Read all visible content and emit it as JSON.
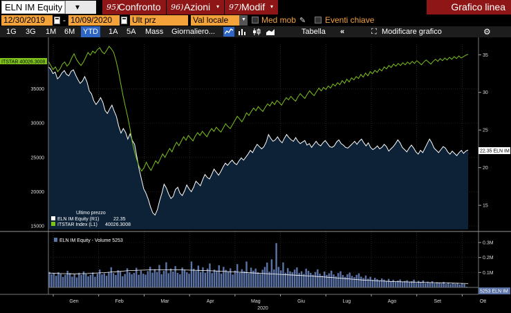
{
  "title_bar": {
    "security": "ELN IM Equity",
    "buttons": [
      {
        "num": "95)",
        "label": "Confronto"
      },
      {
        "num": "96)",
        "label": "Azioni"
      },
      {
        "num": "97)",
        "label": "Modif"
      }
    ],
    "title": "Grafico linea"
  },
  "controls": {
    "start_date": "12/30/2019",
    "dash": "-",
    "end_date": "10/09/2020",
    "field": "Ult prz",
    "currency": "Val locale",
    "moving_avg": "Med mob",
    "events": "Eventi chiave"
  },
  "toolbar": {
    "periods": [
      "1G",
      "3G",
      "1M",
      "6M",
      "YTD",
      "1A",
      "5A",
      "Mass"
    ],
    "active_period": "YTD",
    "frequency": "Giornaliero...",
    "table": "Tabella",
    "modify": "Modificare grafico"
  },
  "colors": {
    "equity_line": "#ffffff",
    "equity_fill": "#0d2237",
    "index_line": "#7ec31c",
    "volume_bar": "#5b73a6",
    "accent_red": "#8e1616",
    "accent_orange": "#f4a23a"
  },
  "chart_data": {
    "type": "line",
    "x_year": "2020",
    "x_ticks": [
      "Gen",
      "Feb",
      "Mar",
      "Apr",
      "Mag",
      "Giu",
      "Lug",
      "Ago",
      "Set",
      "Ott"
    ],
    "left_axis": {
      "ticks": [
        "35000",
        "30000",
        "25000",
        "20000",
        "15000"
      ],
      "range": [
        14500,
        41500
      ]
    },
    "right_axis": {
      "ticks": [
        "35",
        "30",
        "25",
        "20",
        "15"
      ],
      "range": [
        11.8,
        36.4
      ]
    },
    "equity_series": {
      "name": "ELN IM Equity",
      "axis": "right",
      "last_value_label": "22.35 ELN IM",
      "values": [
        33.4,
        33.1,
        32.5,
        32.7,
        31.8,
        32.1,
        32.6,
        32.9,
        32.4,
        32.2,
        32.8,
        33.0,
        32.3,
        31.7,
        31.2,
        31.5,
        32.1,
        31.4,
        30.2,
        29.8,
        28.9,
        28.4,
        28.8,
        29.3,
        28.7,
        27.6,
        27.2,
        27.8,
        28.3,
        27.5,
        26.8,
        25.5,
        24.6,
        25.2,
        24.7,
        23.8,
        24.5,
        23.6,
        23.1,
        21.4,
        19.8,
        18.5,
        17.2,
        16.6,
        15.8,
        14.8,
        14.0,
        13.7,
        14.4,
        15.6,
        16.6,
        17.8,
        17.3,
        16.5,
        15.9,
        16.2,
        17.1,
        17.4,
        16.6,
        16.3,
        16.9,
        17.7,
        17.2,
        16.8,
        17.4,
        18.2,
        17.9,
        17.6,
        18.4,
        19.1,
        18.7,
        18.5,
        19.1,
        19.8,
        19.4,
        19.0,
        19.5,
        20.1,
        20.6,
        20.3,
        20.7,
        21.0,
        20.6,
        20.4,
        20.9,
        21.3,
        21.0,
        21.4,
        21.8,
        22.3,
        22.0,
        22.6,
        23.1,
        22.8,
        22.5,
        22.8,
        23.4,
        24.4,
        23.9,
        23.5,
        23.7,
        24.1,
        23.6,
        23.3,
        23.9,
        24.4,
        24.0,
        23.7,
        23.5,
        24.0,
        23.5,
        23.2,
        23.4,
        23.6,
        23.0,
        23.2,
        22.7,
        23.1,
        23.5,
        23.1,
        22.9,
        23.3,
        23.6,
        23.2,
        22.8,
        22.7,
        22.9,
        23.4,
        23.7,
        23.2,
        23.0,
        22.7,
        22.6,
        22.9,
        23.2,
        23.5,
        23.1,
        23.5,
        23.8,
        23.3,
        22.9,
        23.3,
        22.7,
        22.4,
        22.6,
        22.9,
        22.5,
        22.7,
        23.1,
        22.8,
        22.2,
        22.5,
        22.8,
        23.2,
        23.7,
        23.3,
        22.7,
        22.4,
        22.1,
        22.6,
        23.0,
        22.6,
        22.1,
        21.8,
        22.3,
        22.0,
        22.6,
        23.2,
        23.8,
        23.3,
        22.6,
        22.3,
        22.0,
        22.4,
        22.8,
        22.6,
        22.1,
        21.8,
        22.2,
        21.9,
        21.6,
        22.0,
        22.3,
        21.9,
        22.2,
        22.35
      ]
    },
    "index_series": {
      "name": "ITSTAR Index",
      "axis": "left",
      "tag_label": "ITSTAR 40026.3008",
      "values": [
        39000,
        38400,
        37800,
        38200,
        37500,
        37900,
        38600,
        38900,
        38300,
        38700,
        39500,
        40100,
        39300,
        38800,
        38400,
        38900,
        39600,
        40300,
        39900,
        40500,
        40200,
        40700,
        41000,
        40400,
        40100,
        40600,
        41200,
        40800,
        40300,
        39100,
        37600,
        35800,
        34000,
        32400,
        30900,
        29200,
        27200,
        25700,
        24600,
        23600,
        23000,
        23500,
        24300,
        23600,
        23100,
        23800,
        24500,
        24100,
        24800,
        25500,
        25000,
        25700,
        26300,
        25800,
        26600,
        27200,
        26700,
        27400,
        28000,
        27500,
        28200,
        27800,
        27400,
        28100,
        28600,
        28200,
        28800,
        28400,
        28000,
        28700,
        29200,
        28800,
        29400,
        29000,
        28700,
        29300,
        29900,
        29500,
        29200,
        29800,
        30400,
        31000,
        30600,
        30200,
        30800,
        31500,
        31100,
        31700,
        32200,
        31800,
        32400,
        32000,
        31700,
        32300,
        32800,
        32500,
        33100,
        32700,
        33300,
        33000,
        32600,
        33200,
        33700,
        33400,
        33900,
        33500,
        33200,
        33800,
        34300,
        33900,
        33600,
        34200,
        34700,
        34300,
        34000,
        34600,
        35100,
        34700,
        35200,
        34900,
        35400,
        35100,
        35700,
        35400,
        35900,
        35600,
        36200,
        35800,
        36400,
        36000,
        36600,
        36300,
        36800,
        36500,
        37100,
        36700,
        37300,
        36900,
        37500,
        37200,
        37700,
        37400,
        37900,
        37600,
        38200,
        37900,
        38400,
        38100,
        38600,
        38300,
        38700,
        38400,
        38800,
        38500,
        38900,
        38600,
        39000,
        38700,
        39100,
        38800,
        38500,
        38900,
        39200,
        38900,
        38600,
        39000,
        39300,
        39000,
        39400,
        39100,
        39500,
        39200,
        39600,
        39300,
        39700,
        39400,
        39800,
        39500,
        39700,
        39900,
        40026
      ]
    },
    "legend": {
      "title": "Ultimo prezzo",
      "items": [
        {
          "label": "ELN IM Equity  (R1)",
          "value": "22.35"
        },
        {
          "label": "ITSTAR Index  (L1)",
          "value": "40026.3008"
        }
      ]
    },
    "volume": {
      "label": "ELN IM Equity - Volume 5253",
      "last_label": "5253 ELN IM",
      "axis_ticks": [
        "0.3M",
        "0.2M",
        "0.1M"
      ],
      "max": 360000,
      "values": [
        104000,
        88000,
        96000,
        78000,
        102000,
        91000,
        70000,
        84000,
        111000,
        96000,
        72000,
        88000,
        67000,
        98000,
        83000,
        106000,
        93000,
        74000,
        85000,
        100000,
        71000,
        92000,
        119000,
        87000,
        95000,
        78000,
        103000,
        135000,
        96000,
        83000,
        115000,
        108000,
        75000,
        90000,
        128000,
        101000,
        88000,
        97000,
        131000,
        85000,
        112000,
        92000,
        86000,
        109000,
        138000,
        98000,
        122000,
        104000,
        150000,
        88000,
        111000,
        168000,
        95000,
        126000,
        106000,
        142000,
        97000,
        88000,
        133000,
        118000,
        102000,
        92000,
        173000,
        125000,
        110000,
        146000,
        104000,
        135000,
        98000,
        126000,
        160000,
        96000,
        119000,
        108000,
        148000,
        92000,
        137000,
        117000,
        104000,
        128000,
        86000,
        113000,
        156000,
        98000,
        122000,
        108000,
        173000,
        94000,
        132000,
        112000,
        126000,
        101000,
        91000,
        118000,
        137000,
        166000,
        105000,
        188000,
        120000,
        296000,
        137000,
        114000,
        167000,
        98000,
        129000,
        108000,
        101000,
        119000,
        134000,
        96000,
        108000,
        90000,
        125000,
        111000,
        97000,
        85000,
        103000,
        121000,
        92000,
        79000,
        106000,
        83000,
        94000,
        112000,
        87000,
        74000,
        96000,
        108000,
        83000,
        71000,
        88000,
        99000,
        77000,
        69000,
        84000,
        94000,
        72000,
        63000,
        80000,
        58000,
        71000,
        51000,
        64000,
        56000,
        47000,
        60000,
        52000,
        44000,
        57000,
        41000,
        51000,
        38000,
        46000,
        53000,
        36000,
        43000,
        48000,
        34000,
        41000,
        52000,
        31000,
        44000,
        36000,
        47000,
        29000,
        39000,
        33000,
        42000,
        27000,
        35000,
        31000,
        26000,
        38000,
        24000,
        33000,
        22000,
        29000,
        25000,
        31000,
        20000,
        27000,
        23000,
        5253
      ],
      "avg": [
        96000,
        95000,
        93000,
        92000,
        91000,
        91000,
        92000,
        93000,
        95000,
        97000,
        99000,
        102000,
        105000,
        108000,
        111000,
        113000,
        115000,
        116000,
        117000,
        117000,
        118000,
        118000,
        118000,
        118000,
        117000,
        116000,
        115000,
        114000,
        113000,
        111000,
        110000,
        108000,
        106000,
        104000,
        102000,
        100000,
        98000,
        96000,
        94000,
        92000,
        90000,
        88000,
        86000,
        84000,
        82000,
        80000,
        78000,
        76000,
        73000,
        71000,
        68000,
        65000,
        62000,
        59000,
        56000,
        53000,
        50000,
        48000,
        46000,
        44000,
        42000,
        40000,
        39000,
        38000,
        37000,
        36000,
        35000,
        34000,
        33000,
        32000,
        31000,
        30000,
        29000,
        28000,
        27000,
        26000
      ]
    }
  }
}
